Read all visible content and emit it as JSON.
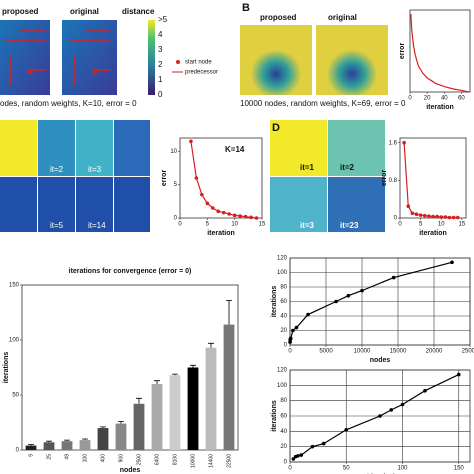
{
  "panels": {
    "a": {
      "img1": "proposed",
      "img2": "original",
      "img3": "distance",
      "cbar": [
        ">5",
        "4",
        "3",
        "2",
        "1",
        "0"
      ],
      "legend1": "start node",
      "legend2": "predecessor",
      "caption": "odes, random weights, K=10, error = 0"
    },
    "b": {
      "letter": "B",
      "img1": "proposed",
      "img2": "original",
      "caption": "10000 nodes, random weights, K=69, error = 0"
    },
    "c": {
      "tiles": [
        "it=2",
        "it=3",
        "it=5",
        "it=14"
      ],
      "k": "K=14"
    },
    "d": {
      "letter": "D",
      "tiles": [
        "it=1",
        "it=2",
        "it=3",
        "it=23"
      ]
    }
  },
  "chart_data": [
    {
      "type": "line",
      "ylabel": "error",
      "xlabel": "iteration",
      "x": [
        1,
        2,
        4,
        6,
        8,
        10,
        15,
        20,
        30,
        40,
        50,
        60,
        69
      ],
      "series": [
        {
          "name": "error",
          "color": "#d62020",
          "values": [
            1,
            0.8,
            0.6,
            0.48,
            0.4,
            0.33,
            0.24,
            0.18,
            0.11,
            0.07,
            0.04,
            0.02,
            0
          ]
        }
      ],
      "xlim": [
        0,
        70
      ],
      "xticks": [
        0,
        20,
        40,
        60
      ],
      "ylim": [
        0,
        1.05
      ],
      "markers": false
    },
    {
      "type": "line",
      "ylabel": "error",
      "xlabel": "iteration",
      "x": [
        2,
        3,
        4,
        5,
        6,
        7,
        8,
        9,
        10,
        11,
        12,
        13,
        14
      ],
      "series": [
        {
          "name": "error",
          "color": "#d62020",
          "values": [
            11.5,
            6,
            3.5,
            2.2,
            1.5,
            1,
            0.8,
            0.6,
            0.4,
            0.3,
            0.2,
            0.1,
            0
          ]
        }
      ],
      "xlim": [
        0,
        15
      ],
      "xticks": [
        0,
        5,
        10,
        15
      ],
      "ylim": [
        0,
        12
      ],
      "yticks": [
        0,
        5,
        10
      ],
      "markers": true
    },
    {
      "type": "line",
      "ylabel": "error",
      "xlabel": "iteration",
      "x": [
        1,
        2,
        3,
        4,
        5,
        6,
        7,
        8,
        9,
        10,
        11,
        12,
        13,
        14
      ],
      "series": [
        {
          "name": "error",
          "color": "#d62020",
          "values": [
            1.6,
            0.25,
            0.1,
            0.08,
            0.06,
            0.05,
            0.04,
            0.03,
            0.03,
            0.02,
            0.02,
            0.01,
            0.01,
            0.01
          ]
        }
      ],
      "xlim": [
        0,
        16
      ],
      "xticks": [
        0,
        5,
        10,
        15
      ],
      "ylim": [
        0,
        1.7
      ],
      "yticks": [
        0,
        0.8,
        1.6
      ],
      "markers": true
    },
    {
      "type": "bar",
      "title": "iterations for convergence (error = 0)",
      "ylabel": "iterations",
      "xlabel": "nodes",
      "categories": [
        "9",
        "25",
        "49",
        "100",
        "400",
        "900",
        "2500",
        "6400",
        "8100",
        "10000",
        "14400",
        "22500"
      ],
      "values": [
        4,
        7,
        8,
        9,
        20,
        24,
        42,
        60,
        68,
        75,
        93,
        114
      ],
      "errors": [
        1,
        1,
        1,
        1,
        1,
        2,
        5,
        3,
        1,
        2,
        4,
        22
      ],
      "colors": [
        "#222",
        "#555",
        "#777",
        "#999",
        "#444",
        "#888",
        "#666",
        "#aaa",
        "#ccc",
        "#000",
        "#bbb",
        "#777"
      ],
      "ylim": [
        0,
        150
      ],
      "yticks": [
        0,
        50,
        100,
        150
      ]
    },
    {
      "type": "line",
      "ylabel": "iterations",
      "xlabel": "nodes",
      "x": [
        9,
        25,
        49,
        100,
        400,
        900,
        2500,
        6400,
        8100,
        10000,
        14400,
        22500
      ],
      "series": [
        {
          "name": "iterations",
          "color": "#000",
          "values": [
            4,
            7,
            8,
            9,
            20,
            24,
            42,
            60,
            68,
            75,
            93,
            114
          ]
        }
      ],
      "xlim": [
        0,
        25000
      ],
      "xticks": [
        0,
        5000,
        10000,
        15000,
        20000,
        25000
      ],
      "ylim": [
        0,
        120
      ],
      "yticks": [
        0,
        20,
        40,
        60,
        80,
        100,
        120
      ],
      "grid": true,
      "markers": true
    },
    {
      "type": "line",
      "ylabel": "iterations",
      "xlabel": "√ (nodes)",
      "x": [
        3,
        5,
        7,
        10,
        20,
        30,
        50,
        80,
        90,
        100,
        120,
        150
      ],
      "series": [
        {
          "name": "iterations",
          "color": "#000",
          "values": [
            4,
            7,
            8,
            9,
            20,
            24,
            42,
            60,
            68,
            75,
            93,
            114
          ]
        }
      ],
      "xlim": [
        0,
        160
      ],
      "xticks": [
        0,
        50,
        100,
        150
      ],
      "ylim": [
        0,
        120
      ],
      "yticks": [
        0,
        20,
        40,
        60,
        80,
        100,
        120
      ],
      "grid": true,
      "markers": true
    }
  ]
}
